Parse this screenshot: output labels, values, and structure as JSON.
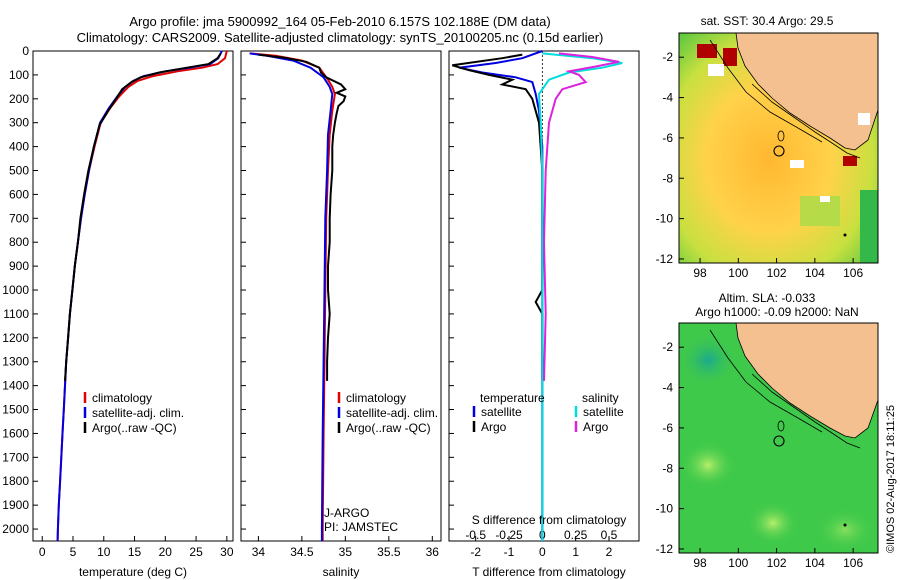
{
  "title_line1": "Argo profile: jma 5900992_164 05-Feb-2010 6.157S 102.188E (DM data)",
  "title_line2": "Climatology: CARS2009. Satellite-adjusted climatology: synTS_20100205.nc (0.15d earlier)",
  "colors": {
    "climatology": "#e00000",
    "satellite": "#0000e0",
    "argo": "#000000",
    "sat_salinity": "#00dddd",
    "argo_salinity": "#dd22dd",
    "land": "#f4c08f",
    "sea_green": "#33bb44"
  },
  "chart_data": [
    {
      "type": "line",
      "id": "temperature",
      "xlabel": "temperature (deg C)",
      "xlim": [
        -1.5,
        31
      ],
      "xticks": [
        0,
        5,
        10,
        15,
        20,
        25,
        30
      ],
      "ylim": [
        2050,
        0
      ],
      "yticks": [
        0,
        100,
        200,
        300,
        400,
        500,
        600,
        700,
        800,
        900,
        1000,
        1100,
        1200,
        1300,
        1400,
        1500,
        1600,
        1700,
        1800,
        1900,
        2000
      ],
      "legend": [
        "climatology",
        "satellite-adj. clim.",
        "Argo(..raw -QC)"
      ],
      "series": [
        {
          "name": "climatology",
          "points": [
            [
              30,
              0
            ],
            [
              29.7,
              30
            ],
            [
              28.5,
              55
            ],
            [
              26,
              70
            ],
            [
              22,
              85
            ],
            [
              18,
              105
            ],
            [
              15.5,
              125
            ],
            [
              14,
              150
            ],
            [
              12.5,
              190
            ],
            [
              11,
              240
            ],
            [
              9.5,
              300
            ],
            [
              8.5,
              400
            ],
            [
              7.6,
              500
            ],
            [
              6.9,
              600
            ],
            [
              6.3,
              700
            ],
            [
              5.8,
              800
            ],
            [
              5.3,
              900
            ],
            [
              4.9,
              1000
            ],
            [
              4.5,
              1100
            ],
            [
              4.2,
              1200
            ],
            [
              3.9,
              1300
            ],
            [
              3.7,
              1400
            ],
            [
              3.5,
              1500
            ],
            [
              3.3,
              1600
            ],
            [
              3.1,
              1700
            ],
            [
              2.9,
              1800
            ],
            [
              2.7,
              1900
            ],
            [
              2.55,
              2000
            ],
            [
              2.5,
              2050
            ]
          ]
        },
        {
          "name": "satellite-adj. clim.",
          "points": [
            [
              29.2,
              0
            ],
            [
              28.6,
              30
            ],
            [
              27.3,
              55
            ],
            [
              24,
              70
            ],
            [
              20,
              85
            ],
            [
              16.5,
              105
            ],
            [
              14.8,
              125
            ],
            [
              13.5,
              150
            ],
            [
              12.2,
              190
            ],
            [
              10.8,
              240
            ],
            [
              9.4,
              300
            ],
            [
              8.4,
              400
            ],
            [
              7.6,
              500
            ],
            [
              6.9,
              600
            ],
            [
              6.3,
              700
            ],
            [
              5.8,
              800
            ],
            [
              5.3,
              900
            ],
            [
              4.9,
              1000
            ],
            [
              4.5,
              1100
            ],
            [
              4.2,
              1200
            ],
            [
              3.9,
              1300
            ],
            [
              3.7,
              1400
            ],
            [
              3.5,
              1500
            ],
            [
              3.3,
              1600
            ],
            [
              3.1,
              1700
            ],
            [
              2.9,
              1800
            ],
            [
              2.7,
              1900
            ],
            [
              2.55,
              2000
            ],
            [
              2.5,
              2050
            ]
          ]
        },
        {
          "name": "Argo(..raw -QC)",
          "points": [
            [
              29,
              10
            ],
            [
              28.5,
              30
            ],
            [
              27,
              55
            ],
            [
              23,
              72
            ],
            [
              19,
              90
            ],
            [
              16,
              110
            ],
            [
              14.5,
              130
            ],
            [
              13,
              160
            ],
            [
              12,
              200
            ],
            [
              10.7,
              250
            ],
            [
              9.3,
              310
            ],
            [
              8.4,
              400
            ],
            [
              7.5,
              500
            ],
            [
              6.8,
              600
            ],
            [
              6.2,
              700
            ],
            [
              5.8,
              800
            ],
            [
              5.3,
              900
            ],
            [
              4.9,
              1000
            ],
            [
              4.5,
              1100
            ],
            [
              4.2,
              1200
            ],
            [
              3.9,
              1300
            ],
            [
              3.7,
              1380
            ]
          ]
        }
      ]
    },
    {
      "type": "line",
      "id": "salinity",
      "xlabel": "salinity",
      "xlim": [
        33.8,
        36.1
      ],
      "xticks": [
        34,
        34.5,
        35,
        35.5,
        36
      ],
      "ylim": [
        2050,
        0
      ],
      "legend": [
        "climatology",
        "satellite-adj. clim.",
        "Argo(..raw -QC)"
      ],
      "annotation": [
        "J-ARGO",
        "PI: JAMSTEC"
      ],
      "series": [
        {
          "name": "climatology",
          "points": [
            [
              33.9,
              10
            ],
            [
              34.2,
              20
            ],
            [
              34.5,
              40
            ],
            [
              34.7,
              70
            ],
            [
              34.8,
              120
            ],
            [
              34.85,
              150
            ],
            [
              34.88,
              180
            ],
            [
              34.85,
              250
            ],
            [
              34.82,
              350
            ],
            [
              34.8,
              500
            ],
            [
              34.78,
              700
            ],
            [
              34.77,
              1000
            ],
            [
              34.76,
              1300
            ],
            [
              34.75,
              1600
            ],
            [
              34.74,
              2000
            ],
            [
              34.74,
              2050
            ]
          ]
        },
        {
          "name": "satellite-adj. clim.",
          "points": [
            [
              33.9,
              10
            ],
            [
              34.1,
              20
            ],
            [
              34.4,
              40
            ],
            [
              34.6,
              70
            ],
            [
              34.75,
              110
            ],
            [
              34.82,
              150
            ],
            [
              34.85,
              180
            ],
            [
              34.83,
              250
            ],
            [
              34.8,
              350
            ],
            [
              34.79,
              500
            ],
            [
              34.77,
              700
            ],
            [
              34.76,
              1000
            ],
            [
              34.75,
              1300
            ],
            [
              34.74,
              1600
            ],
            [
              34.73,
              2000
            ],
            [
              34.73,
              2050
            ]
          ]
        },
        {
          "name": "Argo(..raw -QC)",
          "points": [
            [
              34,
              15
            ],
            [
              34.3,
              28
            ],
            [
              34.55,
              45
            ],
            [
              34.7,
              70
            ],
            [
              34.72,
              90
            ],
            [
              34.78,
              110
            ],
            [
              34.95,
              140
            ],
            [
              35.0,
              160
            ],
            [
              34.9,
              175
            ],
            [
              35.0,
              190
            ],
            [
              34.98,
              210
            ],
            [
              34.92,
              230
            ],
            [
              34.9,
              260
            ],
            [
              34.88,
              300
            ],
            [
              34.86,
              350
            ],
            [
              34.85,
              400
            ],
            [
              34.85,
              500
            ],
            [
              34.83,
              600
            ],
            [
              34.82,
              700
            ],
            [
              34.82,
              800
            ],
            [
              34.8,
              900
            ],
            [
              34.8,
              1000
            ],
            [
              34.82,
              1100
            ],
            [
              34.8,
              1200
            ],
            [
              34.79,
              1300
            ],
            [
              34.79,
              1380
            ]
          ]
        }
      ]
    },
    {
      "type": "line",
      "id": "difference",
      "xlabel": "T difference from climatology",
      "xlabel_top": "S difference from climatology",
      "xlim": [
        -2.8,
        2.9
      ],
      "xticks": [
        -2,
        -1,
        0,
        1,
        2
      ],
      "xticks_top": [
        "-0.5",
        "-0.25",
        "0",
        "0.25",
        "0.5"
      ],
      "ylim": [
        2050,
        0
      ],
      "legend_left_title": "temperature",
      "legend_right_title": "salinity",
      "legend": [
        "satellite",
        "Argo",
        "satellite",
        "Argo"
      ],
      "series": [
        {
          "name": "temperature satellite",
          "points": [
            [
              0,
              0
            ],
            [
              -0.6,
              30
            ],
            [
              -1.4,
              50
            ],
            [
              -2.5,
              70
            ],
            [
              -1.8,
              90
            ],
            [
              -0.8,
              110
            ],
            [
              -0.3,
              130
            ],
            [
              -0.2,
              180
            ],
            [
              -0.1,
              250
            ],
            [
              0,
              400
            ],
            [
              0,
              2050
            ]
          ]
        },
        {
          "name": "temperature Argo",
          "points": [
            [
              -0.6,
              15
            ],
            [
              -1.2,
              30
            ],
            [
              -2.7,
              60
            ],
            [
              -2.2,
              80
            ],
            [
              -1.6,
              100
            ],
            [
              -0.9,
              120
            ],
            [
              -1.2,
              140
            ],
            [
              -0.5,
              160
            ],
            [
              -0.3,
              200
            ],
            [
              -0.1,
              300
            ],
            [
              0,
              500
            ],
            [
              0,
              1000
            ],
            [
              -0.2,
              1050
            ],
            [
              0,
              1100
            ],
            [
              0,
              1380
            ]
          ]
        },
        {
          "name": "salinity satellite",
          "points": [
            [
              0.0,
              10
            ],
            [
              1.5,
              30
            ],
            [
              2.4,
              50
            ],
            [
              1.8,
              70
            ],
            [
              0.8,
              90
            ],
            [
              0.2,
              120
            ],
            [
              -0.1,
              180
            ],
            [
              -0.05,
              300
            ],
            [
              0,
              500
            ],
            [
              0,
              2050
            ]
          ]
        },
        {
          "name": "salinity Argo",
          "points": [
            [
              0.5,
              10
            ],
            [
              1.5,
              25
            ],
            [
              2.3,
              45
            ],
            [
              1.6,
              65
            ],
            [
              0.8,
              85
            ],
            [
              1.1,
              100
            ],
            [
              1.3,
              130
            ],
            [
              0.6,
              160
            ],
            [
              0.4,
              200
            ],
            [
              0.2,
              300
            ],
            [
              0.1,
              500
            ],
            [
              0.05,
              800
            ],
            [
              0.1,
              1100
            ],
            [
              0.05,
              1380
            ]
          ]
        }
      ]
    }
  ],
  "maps": {
    "sst": {
      "title": "sat. SST: 30.4  Argo: 29.5",
      "xticks": [
        98,
        100,
        102,
        104,
        106
      ],
      "yticks": [
        -2,
        -4,
        -6,
        -8,
        -10,
        -12
      ]
    },
    "sla": {
      "title_line1": "Altim. SLA: -0.033",
      "title_line2": "Argo h1000: -0.09 h2000: NaN",
      "xticks": [
        98,
        100,
        102,
        104,
        106
      ],
      "yticks": [
        -2,
        -4,
        -6,
        -8,
        -10,
        -12
      ]
    }
  },
  "stamp": "©IMOS 02-Aug-2017 18:11:25"
}
